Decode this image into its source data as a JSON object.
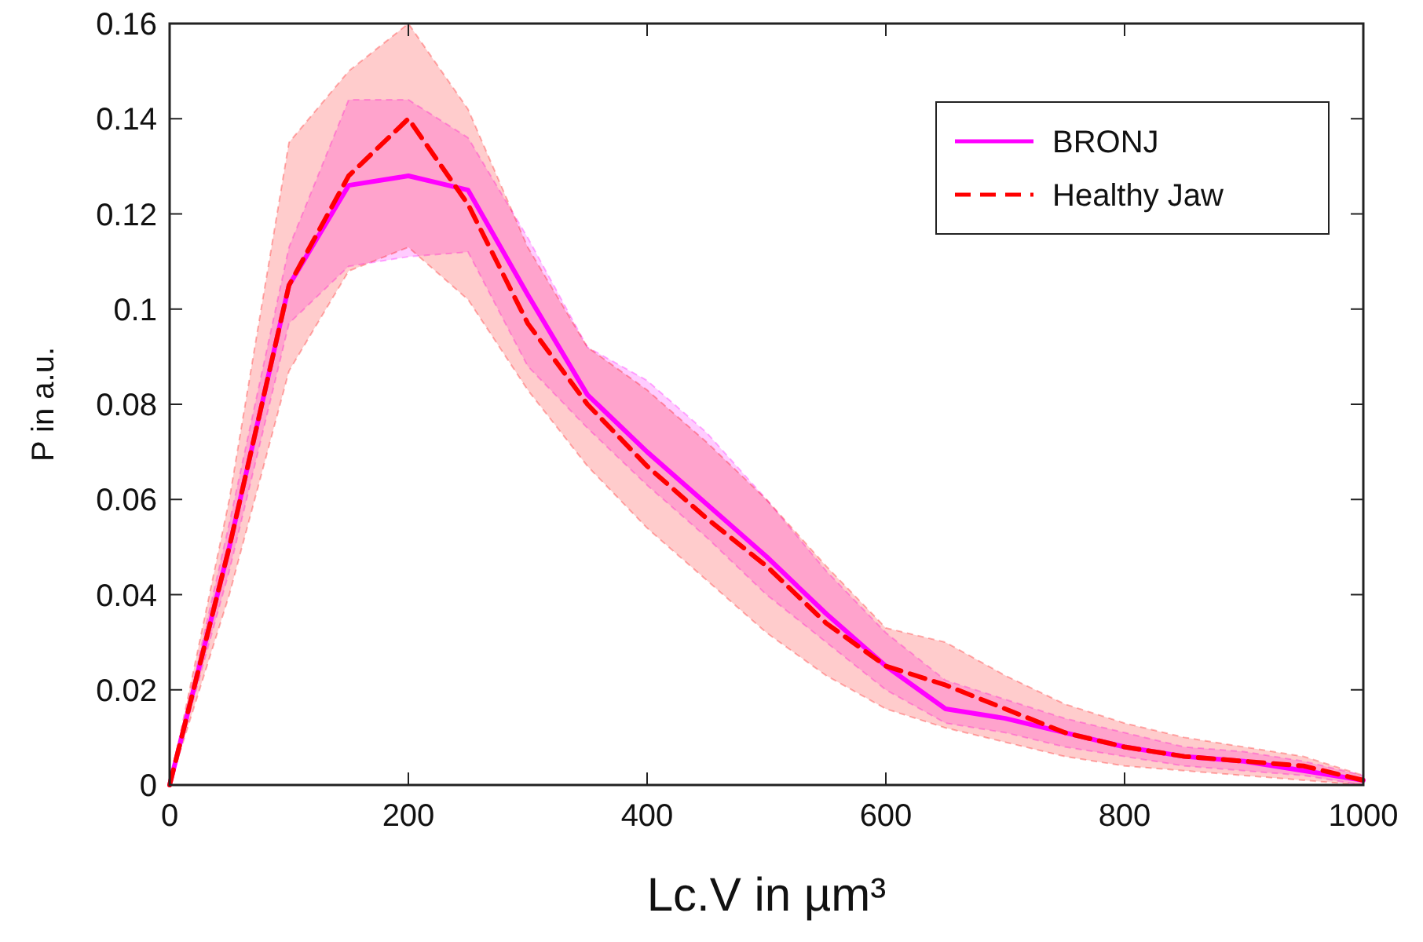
{
  "chart_data": {
    "type": "line",
    "xlabel": "Lc.V in µm³",
    "ylabel": "P in a.u.",
    "x": [
      0,
      50,
      100,
      150,
      200,
      250,
      300,
      350,
      400,
      450,
      500,
      550,
      600,
      650,
      700,
      750,
      800,
      850,
      900,
      950,
      1000
    ],
    "xlim": [
      0,
      1000
    ],
    "xticks": [
      0,
      200,
      400,
      600,
      800,
      1000
    ],
    "ylim": [
      0,
      0.16
    ],
    "yticks": [
      0,
      0.02,
      0.04,
      0.06,
      0.08,
      0.1,
      0.12,
      0.14,
      0.16
    ],
    "grid": false,
    "legend": "top right",
    "series": [
      {
        "name": "BRONJ",
        "color": "#ff00ff",
        "line_style": "solid",
        "values": [
          0,
          0.05,
          0.105,
          0.126,
          0.128,
          0.125,
          0.103,
          0.082,
          0.07,
          0.059,
          0.048,
          0.036,
          0.025,
          0.016,
          0.014,
          0.011,
          0.008,
          0.006,
          0.005,
          0.003,
          0.001
        ],
        "lower": [
          0,
          0.045,
          0.097,
          0.109,
          0.111,
          0.112,
          0.088,
          0.075,
          0.063,
          0.052,
          0.04,
          0.03,
          0.02,
          0.013,
          0.011,
          0.008,
          0.006,
          0.004,
          0.003,
          0.002,
          0
        ],
        "upper": [
          0,
          0.055,
          0.113,
          0.144,
          0.144,
          0.136,
          0.115,
          0.092,
          0.085,
          0.074,
          0.06,
          0.045,
          0.032,
          0.022,
          0.018,
          0.014,
          0.011,
          0.008,
          0.007,
          0.005,
          0.002
        ]
      },
      {
        "name": "Healthy Jaw",
        "color": "#ff0000",
        "line_style": "dashed",
        "values": [
          0,
          0.05,
          0.105,
          0.128,
          0.14,
          0.122,
          0.097,
          0.08,
          0.067,
          0.056,
          0.046,
          0.034,
          0.025,
          0.021,
          0.016,
          0.011,
          0.008,
          0.006,
          0.005,
          0.004,
          0.001
        ],
        "lower": [
          0,
          0.04,
          0.087,
          0.108,
          0.113,
          0.102,
          0.083,
          0.067,
          0.054,
          0.043,
          0.032,
          0.023,
          0.016,
          0.012,
          0.009,
          0.006,
          0.004,
          0.003,
          0.002,
          0.001,
          0
        ],
        "upper": [
          0,
          0.06,
          0.135,
          0.15,
          0.16,
          0.142,
          0.113,
          0.092,
          0.083,
          0.072,
          0.06,
          0.046,
          0.033,
          0.03,
          0.023,
          0.017,
          0.013,
          0.01,
          0.008,
          0.006,
          0.002
        ]
      }
    ]
  }
}
